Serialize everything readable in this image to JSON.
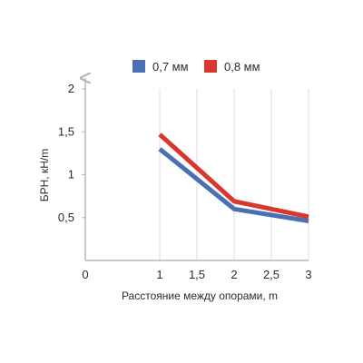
{
  "chart_data": {
    "type": "line",
    "title": "",
    "xlabel": "Расстояние между опорами, m",
    "ylabel": "БРН, кН/m",
    "x_ticks": [
      "0",
      "1",
      "1,5",
      "2",
      "2,5",
      "3"
    ],
    "y_ticks": [
      "0,5",
      "1",
      "1,5",
      "2"
    ],
    "xlim": [
      0,
      3
    ],
    "ylim": [
      0,
      2
    ],
    "grid": "vertical",
    "legend_position": "top",
    "series": [
      {
        "name": "0,7 мм",
        "color": "#4a6fb3",
        "x": [
          1,
          2,
          3
        ],
        "y": [
          1.3,
          0.6,
          0.46
        ]
      },
      {
        "name": "0,8 мм",
        "color": "#d9362d",
        "x": [
          1,
          2,
          3
        ],
        "y": [
          1.47,
          0.69,
          0.51
        ]
      }
    ]
  },
  "colors": {
    "axis": "#b5b5b5",
    "grid": "#dedede",
    "text": "#2b2b2b"
  }
}
